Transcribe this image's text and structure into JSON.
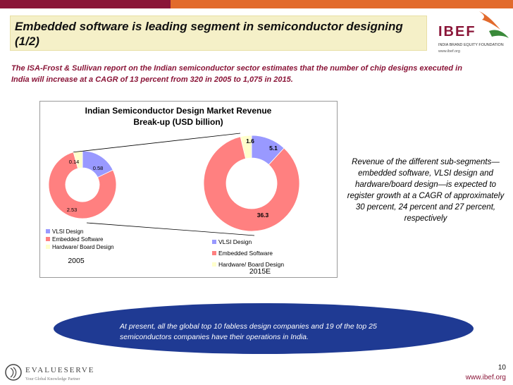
{
  "slide": {
    "title": "Embedded software is leading segment in semiconductor designing (1/2)",
    "intro": "The ISA-Frost & Sullivan report on the Indian semiconductor sector estimates that the number of chip designs executed in India will increase at a CAGR of 13 percent from 320 in 2005 to 1,075 in 2015.",
    "side_note": "Revenue of the different sub-segments—embedded software, VLSI design and hardware/board design—is expected to register growth at a CAGR of approximately 30 percent, 24 percent and 27 percent, respectively",
    "oval_text": "At present, all the global top 10 fabless design companies and 19 of the top 25 semiconductors companies have their operations in India.",
    "page_number": "10",
    "footer_url": "www.ibef.org"
  },
  "branding": {
    "ibef_wordmark": "IBEF",
    "ibef_tagline": "INDIA BRAND EQUITY FOUNDATION",
    "ibef_url": "www.ibef.org",
    "evalueserve_wordmark": "EVALUESERVE",
    "evalueserve_tagline": "Your Global Knowledge Partner"
  },
  "colors": {
    "maroon": "#8a1538",
    "orange": "#e26a2c",
    "title_bg": "#f5f0c8",
    "oval_blue": "#1f3a93",
    "vlsi": "#9999ff",
    "embedded": "#ff8080",
    "hardware": "#ffffcc"
  },
  "chart_data": {
    "type": "pie",
    "title": "Indian Semiconductor Design Market Revenue Break-up (USD billion)",
    "donut": true,
    "series": [
      {
        "name": "2005",
        "categories": [
          "VLSI Design",
          "Embedded Software",
          "Hardware/ Board Design"
        ],
        "values": [
          0.58,
          2.53,
          0.14
        ],
        "legend": [
          "VLSI Design",
          "Embedded Software",
          "Hardware/ Board Design"
        ]
      },
      {
        "name": "2015E",
        "categories": [
          "VLSI Design",
          "Embedded Software",
          "Hardware/ Board Design"
        ],
        "values": [
          5.1,
          36.3,
          1.6
        ],
        "legend": [
          "VLSI Design",
          "Embedded Software",
          "Hardware/ Board Design"
        ]
      }
    ],
    "colors": [
      "#9999ff",
      "#ff8080",
      "#ffffcc"
    ],
    "value_labels": [
      [
        "0.58",
        "2.53",
        "0.14"
      ],
      [
        "5.1",
        "36.3",
        "1.6"
      ]
    ]
  }
}
